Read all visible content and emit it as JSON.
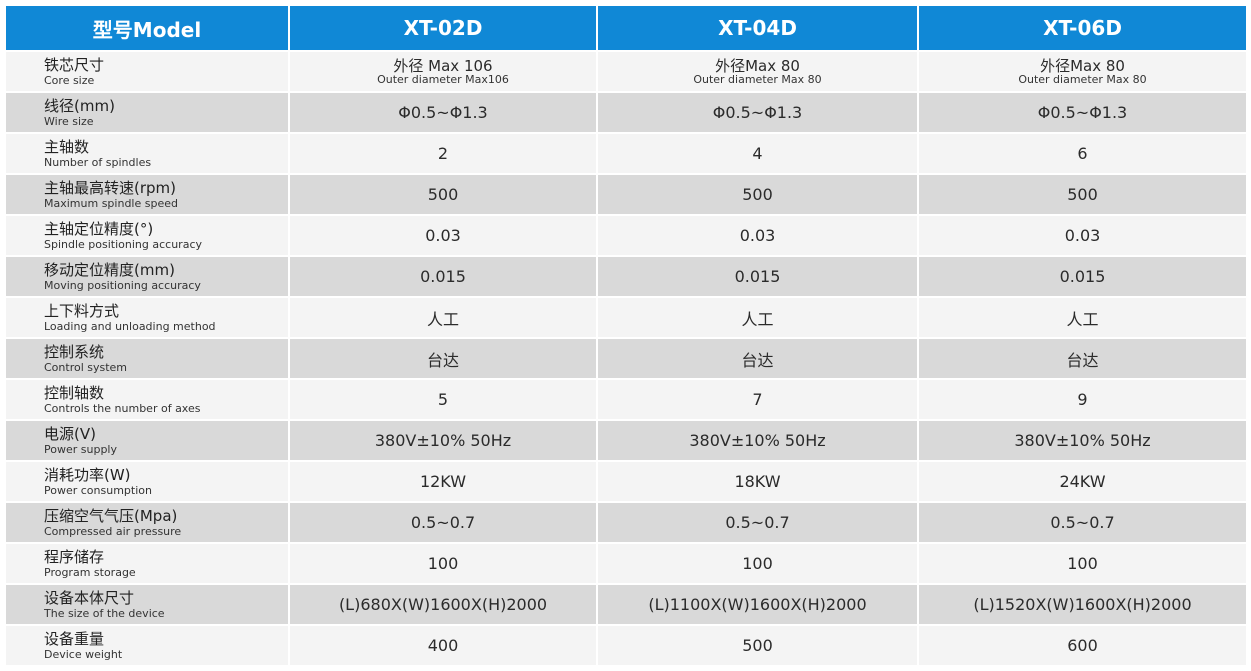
{
  "header": {
    "model_label": "型号Model",
    "models": [
      "XT-02D",
      "XT-04D",
      "XT-06D"
    ]
  },
  "rows": [
    {
      "cn": "铁芯尺寸",
      "en": "Core size",
      "values": [
        {
          "main": "外径 Max 106",
          "sub": "Outer diameter Max106"
        },
        {
          "main": "外径Max 80",
          "sub": "Outer diameter Max 80"
        },
        {
          "main": "外径Max 80",
          "sub": "Outer diameter Max 80"
        }
      ]
    },
    {
      "cn": "线径(mm)",
      "en": "Wire size",
      "values": [
        "Φ0.5~Φ1.3",
        "Φ0.5~Φ1.3",
        "Φ0.5~Φ1.3"
      ]
    },
    {
      "cn": "主轴数",
      "en": "Number of spindles",
      "values": [
        "2",
        "4",
        "6"
      ]
    },
    {
      "cn": "主轴最高转速(rpm)",
      "en": "Maximum spindle speed",
      "values": [
        "500",
        "500",
        "500"
      ]
    },
    {
      "cn": "主轴定位精度(°)",
      "en": "Spindle positioning accuracy",
      "values": [
        "0.03",
        "0.03",
        "0.03"
      ]
    },
    {
      "cn": "移动定位精度(mm)",
      "en": "Moving positioning accuracy",
      "values": [
        "0.015",
        "0.015",
        "0.015"
      ]
    },
    {
      "cn": "上下料方式",
      "en": "Loading and unloading method",
      "values": [
        "人工",
        "人工",
        "人工"
      ]
    },
    {
      "cn": "控制系统",
      "en": "Control system",
      "values": [
        "台达",
        "台达",
        "台达"
      ]
    },
    {
      "cn": "控制轴数",
      "en": "Controls the number of axes",
      "values": [
        "5",
        "7",
        "9"
      ]
    },
    {
      "cn": "电源(V)",
      "en": "Power supply",
      "values": [
        "380V±10% 50Hz",
        "380V±10% 50Hz",
        "380V±10% 50Hz"
      ]
    },
    {
      "cn": "消耗功率(W)",
      "en": "Power consumption",
      "values": [
        "12KW",
        "18KW",
        "24KW"
      ]
    },
    {
      "cn": "压缩空气气压(Mpa)",
      "en": "Compressed air pressure",
      "values": [
        "0.5~0.7",
        "0.5~0.7",
        "0.5~0.7"
      ]
    },
    {
      "cn": "程序储存",
      "en": "Program storage",
      "values": [
        "100",
        "100",
        "100"
      ]
    },
    {
      "cn": "设备本体尺寸",
      "en": "The size of the device",
      "values": [
        "(L)680X(W)1600X(H)2000",
        "(L)1100X(W)1600X(H)2000",
        "(L)1520X(W)1600X(H)2000"
      ]
    },
    {
      "cn": "设备重量",
      "en": "Device weight",
      "values": [
        "400",
        "500",
        "600"
      ]
    }
  ],
  "colors": {
    "header_bg": "#1088d6",
    "row_light": "#f4f4f4",
    "row_dark": "#d9d9d9"
  }
}
